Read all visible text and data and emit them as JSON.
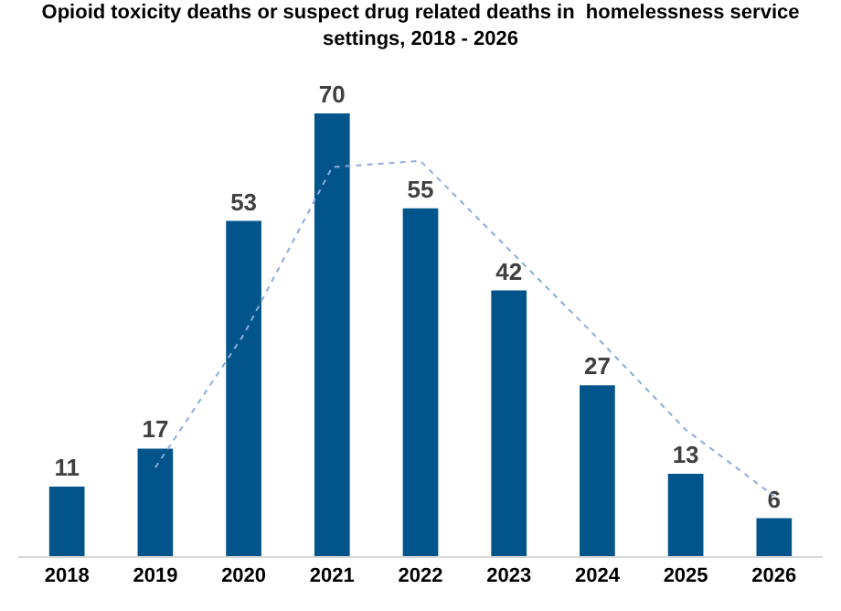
{
  "chart_data": {
    "type": "bar",
    "title": "Opioid toxicity deaths or suspect drug related deaths in  homelessness service settings, 2018 - 2026",
    "categories": [
      "2018",
      "2019",
      "2020",
      "2021",
      "2022",
      "2023",
      "2024",
      "2025",
      "2026"
    ],
    "series": [
      {
        "color": "#02558b",
        "values": [
          11,
          17,
          53,
          70,
          55,
          42,
          27,
          13,
          6
        ],
        "value_labels": [
          "11",
          "17",
          "53",
          "70",
          "55",
          "42",
          "27",
          "13",
          "6"
        ]
      },
      {
        "type": "line",
        "color": "#8eaadb",
        "line_style": "dotted",
        "values": [
          null,
          14,
          35,
          61.5,
          62.5,
          48.5,
          34.5,
          20,
          9.5
        ]
      }
    ],
    "grid": false
  }
}
